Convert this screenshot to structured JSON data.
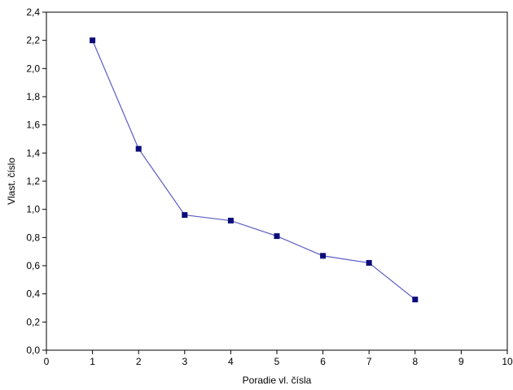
{
  "chart_data": {
    "type": "line",
    "title": "",
    "xlabel": "Poradie vl. čísla",
    "ylabel": "Vlast. číslo",
    "xlim": [
      0,
      10
    ],
    "ylim": [
      0,
      2.4
    ],
    "x_ticks": [
      0,
      1,
      2,
      3,
      4,
      5,
      6,
      7,
      8,
      9,
      10
    ],
    "x_tick_labels": [
      "0",
      "1",
      "2",
      "3",
      "4",
      "5",
      "6",
      "7",
      "8",
      "9",
      "10"
    ],
    "y_ticks": [
      0,
      0.2,
      0.4,
      0.6,
      0.8,
      1.0,
      1.2,
      1.4,
      1.6,
      1.8,
      2.0,
      2.2,
      2.4
    ],
    "y_tick_labels": [
      "0,0",
      "0,2",
      "0,4",
      "0,6",
      "0,8",
      "1,0",
      "1,2",
      "1,4",
      "1,6",
      "1,8",
      "2,0",
      "2,2",
      "2,4"
    ],
    "grid": false,
    "legend": "none",
    "series": [
      {
        "x": [
          1,
          2,
          3,
          4,
          5,
          6,
          7,
          8
        ],
        "values": [
          2.2,
          1.43,
          0.96,
          0.92,
          0.81,
          0.67,
          0.62,
          0.36
        ],
        "line_color": "#5b5bc4",
        "marker_color": "#0b0b7a",
        "marker": "square"
      }
    ]
  }
}
